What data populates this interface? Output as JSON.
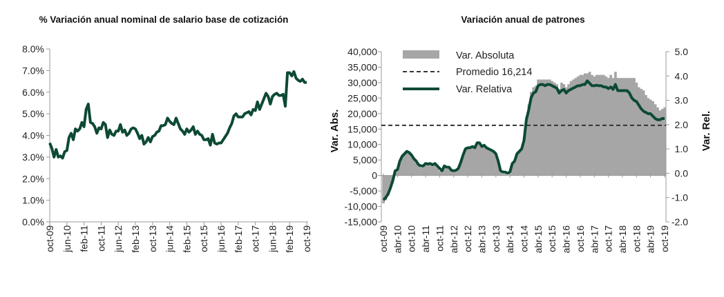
{
  "chart_data": [
    {
      "type": "line",
      "title": "% Variación anual nominal de salario base de cotización",
      "xlabel": "",
      "ylabel": "",
      "x_start": "oct-09",
      "x_end": "oct-19",
      "x_ticks": [
        "oct-09",
        "jun-10",
        "feb-11",
        "oct-11",
        "jun-12",
        "feb-13",
        "oct-13",
        "jun-14",
        "feb-15",
        "oct-15",
        "jun-16",
        "feb-17",
        "oct-17",
        "jun-18",
        "feb-19",
        "oct-19"
      ],
      "ylim": [
        0,
        8
      ],
      "y_ticks": [
        "0.0%",
        "1.0%",
        "2.0%",
        "3.0%",
        "4.0%",
        "5.0%",
        "6.0%",
        "7.0%",
        "8.0%"
      ],
      "grid": false,
      "color": "#0d4a33",
      "values": [
        3.65,
        3.4,
        3.0,
        3.35,
        3.0,
        3.05,
        2.95,
        3.25,
        3.3,
        3.9,
        4.1,
        3.8,
        4.3,
        4.2,
        4.3,
        4.6,
        4.4,
        5.2,
        5.45,
        4.6,
        4.55,
        4.4,
        4.1,
        4.35,
        4.3,
        4.6,
        4.5,
        3.9,
        4.25,
        4.05,
        4.0,
        4.2,
        4.2,
        4.5,
        4.15,
        4.25,
        4.0,
        4.1,
        4.3,
        4.35,
        4.3,
        4.1,
        3.85,
        4.0,
        3.6,
        3.7,
        3.9,
        3.7,
        3.95,
        4.0,
        4.15,
        4.2,
        4.45,
        4.45,
        4.5,
        4.8,
        4.65,
        4.55,
        4.5,
        4.8,
        4.55,
        4.3,
        4.2,
        4.05,
        4.3,
        4.15,
        4.25,
        4.4,
        4.05,
        4.2,
        4.05,
        4.0,
        3.8,
        3.8,
        3.85,
        3.55,
        4.05,
        3.65,
        3.6,
        3.65,
        3.65,
        3.8,
        3.95,
        4.1,
        4.35,
        4.55,
        4.9,
        5.0,
        4.85,
        4.85,
        4.85,
        5.0,
        5.05,
        5.1,
        4.95,
        5.2,
        5.15,
        5.55,
        5.2,
        5.45,
        5.7,
        5.95,
        5.8,
        5.45,
        5.8,
        5.9,
        5.95,
        5.85,
        5.85,
        5.9,
        5.35,
        6.9,
        6.9,
        6.75,
        6.95,
        6.65,
        6.55,
        6.5,
        6.6,
        6.45,
        6.45
      ]
    },
    {
      "type": "bar+line",
      "title": "Variación anual de patrones",
      "ylabel": "Var. Abs.",
      "y2label": "Var. Rel.",
      "x_start": "oct-09",
      "x_end": "oct-19",
      "x_ticks": [
        "oct-09",
        "abr-10",
        "oct-10",
        "abr-11",
        "oct-11",
        "abr-12",
        "oct-12",
        "abr-13",
        "oct-13",
        "abr-14",
        "oct-14",
        "abr-15",
        "oct-15",
        "abr-16",
        "oct-16",
        "abr-17",
        "oct-17",
        "abr-18",
        "oct-18",
        "abr-19",
        "oct-19"
      ],
      "ylim": [
        -15000,
        40000
      ],
      "y_ticks": [
        "-15,000",
        "-10,000",
        "-5,000",
        "0",
        "5,000",
        "10,000",
        "15,000",
        "20,000",
        "25,000",
        "30,000",
        "35,000",
        "40,000"
      ],
      "y2lim": [
        -2,
        5
      ],
      "y2_ticks": [
        "-2.0",
        "-1.0",
        "0.0",
        "1.0",
        "2.0",
        "3.0",
        "4.0",
        "5.0"
      ],
      "legend_position": "top-left",
      "series": [
        {
          "name": "Var. Absoluta",
          "kind": "bar",
          "axis": "left",
          "color": "#a6a6a6",
          "values": [
            -9000,
            -8000,
            -6500,
            -4500,
            -2000,
            1000,
            1500,
            4000,
            6000,
            7000,
            7500,
            7000,
            6000,
            5000,
            4000,
            3000,
            2500,
            2700,
            3500,
            3300,
            3500,
            3000,
            3500,
            2500,
            1500,
            1000,
            2500,
            2200,
            2200,
            1200,
            1000,
            1200,
            2000,
            4000,
            6500,
            8500,
            9000,
            9000,
            9500,
            9000,
            10500,
            10500,
            9500,
            9500,
            9000,
            8500,
            8000,
            7500,
            7000,
            4500,
            1000,
            500,
            500,
            0,
            500,
            3500,
            4500,
            7000,
            8000,
            9000,
            12000,
            19000,
            23000,
            27000,
            28500,
            29000,
            31000,
            31000,
            31000,
            31000,
            31000,
            31000,
            30500,
            30000,
            29500,
            28000,
            30000,
            29500,
            28500,
            29500,
            30500,
            31000,
            31500,
            32000,
            32500,
            32500,
            33000,
            33000,
            33500,
            32500,
            32000,
            32500,
            32500,
            32500,
            32500,
            32000,
            31500,
            32500,
            31500,
            33500,
            31500,
            31500,
            31500,
            31500,
            31500,
            31500,
            31500,
            31500,
            30000,
            28500,
            28000,
            27500,
            26000,
            25000,
            24500,
            24000,
            23000,
            22000,
            21000,
            21500,
            22000
          ]
        },
        {
          "name": "Promedio 16,214",
          "kind": "hline",
          "axis": "left",
          "color": "#333333",
          "value": 16214
        },
        {
          "name": "Var. Relativa",
          "kind": "line",
          "axis": "right",
          "color": "#0d4a33",
          "values": [
            -1.1,
            -1.0,
            -0.85,
            -0.6,
            -0.3,
            0.1,
            0.15,
            0.5,
            0.7,
            0.8,
            0.9,
            0.85,
            0.75,
            0.6,
            0.5,
            0.35,
            0.3,
            0.3,
            0.4,
            0.38,
            0.4,
            0.35,
            0.4,
            0.3,
            0.2,
            0.1,
            0.3,
            0.25,
            0.25,
            0.12,
            0.1,
            0.12,
            0.2,
            0.45,
            0.75,
            1.0,
            1.05,
            1.05,
            1.1,
            1.05,
            1.25,
            1.25,
            1.1,
            1.15,
            1.05,
            1.0,
            0.95,
            0.9,
            0.8,
            0.5,
            0.1,
            0.05,
            0.05,
            0.0,
            0.05,
            0.4,
            0.5,
            0.8,
            0.9,
            1.0,
            1.35,
            2.2,
            2.6,
            3.1,
            3.3,
            3.35,
            3.6,
            3.65,
            3.65,
            3.6,
            3.65,
            3.65,
            3.6,
            3.55,
            3.5,
            3.3,
            3.4,
            3.45,
            3.3,
            3.4,
            3.45,
            3.5,
            3.55,
            3.6,
            3.6,
            3.65,
            3.65,
            3.8,
            3.7,
            3.6,
            3.6,
            3.62,
            3.6,
            3.6,
            3.55,
            3.55,
            3.48,
            3.55,
            3.45,
            3.65,
            3.4,
            3.4,
            3.4,
            3.4,
            3.4,
            3.3,
            3.1,
            3.0,
            2.95,
            2.8,
            2.65,
            2.55,
            2.5,
            2.45,
            2.45,
            2.35,
            2.25,
            2.2,
            2.2,
            2.25,
            2.25
          ]
        }
      ]
    }
  ]
}
